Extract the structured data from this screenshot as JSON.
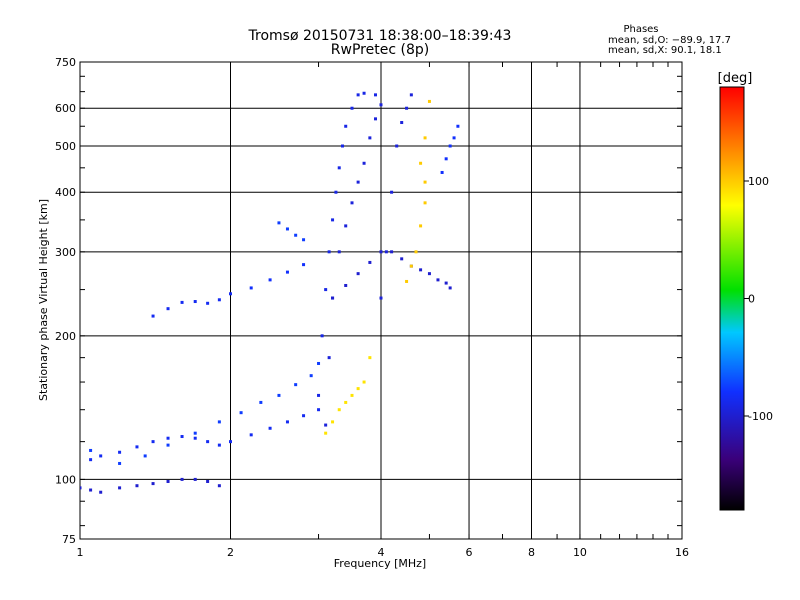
{
  "header": {
    "title_line1": "Tromsø 20150731 18:38:00–18:39:43",
    "title_line2": "RwPretec (8p)"
  },
  "phases_box": {
    "title": "Phases",
    "line1": "mean, sd,O: −89.9, 17.7",
    "line2": "mean, sd,X:  90.1, 18.1"
  },
  "chart_data": {
    "type": "scatter",
    "title": "Tromsø 20150731 18:38:00–18:39:43",
    "subtitle": "RwPretec (8p)",
    "xlabel": "Frequency [MHz]",
    "ylabel": "Stationary phase Virtual Height [km]",
    "x_scale": "log",
    "y_scale": "log",
    "xlim": [
      1,
      16
    ],
    "ylim": [
      75,
      750
    ],
    "x_ticks": [
      1,
      2,
      4,
      6,
      8,
      10,
      16
    ],
    "x_tick_labels": [
      "1",
      "2",
      "4",
      "6",
      "8",
      "10",
      "16"
    ],
    "y_ticks": [
      75,
      100,
      200,
      300,
      400,
      500,
      600,
      750
    ],
    "y_tick_labels": [
      "75",
      "100",
      "200",
      "300",
      "400",
      "500",
      "600",
      "750"
    ],
    "grid": true,
    "color_scale": {
      "label": "[deg]",
      "range": [
        -180,
        180
      ],
      "ticks": [
        100,
        0,
        -100
      ],
      "tick_labels": [
        "100",
        "0",
        "-100"
      ]
    },
    "traces": [
      {
        "name": "",
        "phase": -100,
        "points": [
          [
            1.0,
            96
          ],
          [
            1.05,
            95
          ],
          [
            1.1,
            94
          ],
          [
            1.2,
            96
          ],
          [
            1.3,
            97
          ],
          [
            1.4,
            98
          ],
          [
            1.5,
            99
          ],
          [
            1.6,
            100
          ],
          [
            1.7,
            100
          ],
          [
            1.8,
            99
          ],
          [
            1.9,
            97
          ]
        ]
      },
      {
        "name": "",
        "phase": -85,
        "points": [
          [
            1.05,
            110
          ],
          [
            1.1,
            112
          ],
          [
            1.2,
            114
          ],
          [
            1.3,
            117
          ],
          [
            1.4,
            120
          ],
          [
            1.5,
            122
          ],
          [
            1.6,
            123
          ],
          [
            1.7,
            122
          ],
          [
            1.8,
            120
          ],
          [
            1.9,
            118
          ],
          [
            2.0,
            120
          ],
          [
            2.2,
            124
          ],
          [
            2.4,
            128
          ],
          [
            2.6,
            132
          ],
          [
            2.8,
            136
          ],
          [
            3.0,
            140
          ]
        ]
      },
      {
        "name": "",
        "phase": -75,
        "points": [
          [
            1.05,
            115
          ],
          [
            1.2,
            108
          ],
          [
            1.35,
            112
          ],
          [
            1.5,
            118
          ],
          [
            1.7,
            125
          ],
          [
            1.9,
            132
          ],
          [
            2.1,
            138
          ],
          [
            2.3,
            145
          ],
          [
            2.5,
            150
          ],
          [
            2.7,
            158
          ],
          [
            2.9,
            165
          ],
          [
            3.0,
            175
          ]
        ]
      },
      {
        "name": "",
        "phase": -85,
        "points": [
          [
            1.4,
            220
          ],
          [
            1.5,
            228
          ],
          [
            1.6,
            235
          ],
          [
            1.7,
            236
          ],
          [
            1.8,
            234
          ],
          [
            1.9,
            238
          ],
          [
            2.0,
            245
          ]
        ]
      },
      {
        "name": "",
        "phase": -80,
        "points": [
          [
            2.2,
            252
          ],
          [
            2.4,
            262
          ],
          [
            2.6,
            272
          ],
          [
            2.8,
            282
          ]
        ]
      },
      {
        "name": "",
        "phase": -75,
        "points": [
          [
            2.5,
            345
          ],
          [
            2.6,
            335
          ],
          [
            2.7,
            325
          ],
          [
            2.8,
            318
          ]
        ]
      },
      {
        "name": "",
        "phase": -90,
        "points": [
          [
            3.0,
            150
          ],
          [
            3.05,
            200
          ],
          [
            3.1,
            250
          ],
          [
            3.15,
            300
          ],
          [
            3.2,
            350
          ],
          [
            3.25,
            400
          ],
          [
            3.3,
            450
          ],
          [
            3.35,
            500
          ],
          [
            3.4,
            550
          ],
          [
            3.5,
            600
          ],
          [
            3.6,
            640
          ],
          [
            3.7,
            645
          ],
          [
            3.9,
            640
          ]
        ]
      },
      {
        "name": "",
        "phase": -95,
        "points": [
          [
            3.1,
            130
          ],
          [
            3.15,
            180
          ],
          [
            3.2,
            240
          ],
          [
            3.3,
            300
          ],
          [
            3.4,
            340
          ],
          [
            3.5,
            380
          ],
          [
            3.6,
            420
          ],
          [
            3.7,
            460
          ],
          [
            3.8,
            520
          ],
          [
            3.9,
            570
          ],
          [
            4.0,
            610
          ]
        ]
      },
      {
        "name": "",
        "phase": -100,
        "points": [
          [
            3.2,
            240
          ],
          [
            3.4,
            255
          ],
          [
            3.6,
            270
          ],
          [
            3.8,
            285
          ],
          [
            4.0,
            300
          ],
          [
            4.2,
            300
          ],
          [
            4.4,
            290
          ],
          [
            4.6,
            280
          ],
          [
            4.8,
            275
          ],
          [
            5.0,
            270
          ],
          [
            5.2,
            262
          ],
          [
            5.4,
            258
          ],
          [
            5.5,
            252
          ]
        ]
      },
      {
        "name": "",
        "phase": -95,
        "points": [
          [
            4.0,
            240
          ],
          [
            4.1,
            300
          ],
          [
            4.2,
            400
          ],
          [
            4.3,
            500
          ],
          [
            4.4,
            560
          ],
          [
            4.5,
            600
          ],
          [
            4.6,
            640
          ]
        ]
      },
      {
        "name": "",
        "phase": 90,
        "points": [
          [
            3.1,
            125
          ],
          [
            3.2,
            132
          ],
          [
            3.3,
            140
          ],
          [
            3.4,
            145
          ],
          [
            3.5,
            150
          ],
          [
            3.6,
            155
          ],
          [
            3.7,
            160
          ],
          [
            3.8,
            180
          ]
        ]
      },
      {
        "name": "",
        "phase": 100,
        "points": [
          [
            4.5,
            260
          ],
          [
            4.6,
            280
          ],
          [
            4.7,
            300
          ],
          [
            4.8,
            340
          ],
          [
            4.9,
            380
          ],
          [
            4.9,
            420
          ],
          [
            4.8,
            460
          ],
          [
            4.9,
            520
          ],
          [
            5.0,
            620
          ]
        ]
      },
      {
        "name": "",
        "phase": -80,
        "points": [
          [
            5.3,
            440
          ],
          [
            5.4,
            470
          ],
          [
            5.5,
            500
          ],
          [
            5.6,
            520
          ],
          [
            5.7,
            550
          ]
        ]
      }
    ]
  }
}
